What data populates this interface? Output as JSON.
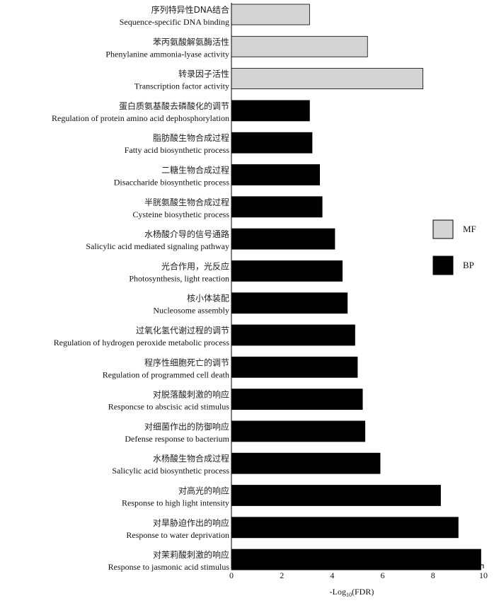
{
  "chart_data": {
    "type": "bar",
    "orientation": "horizontal",
    "categories": [
      {
        "zh": "序列特异性DNA结合",
        "en": "Sequence-specific DNA binding",
        "value": 3.1,
        "group": "MF"
      },
      {
        "zh": "苯丙氨酸解氨酶活性",
        "en": "Phenylanine ammonia-lyase activity",
        "value": 5.4,
        "group": "MF"
      },
      {
        "zh": "转录因子活性",
        "en": "Transcription factor activity",
        "value": 7.6,
        "group": "MF"
      },
      {
        "zh": "蛋白质氨基酸去磷酸化的调节",
        "en": "Regulation of protein amino acid dephosphorylation",
        "value": 3.1,
        "group": "BP"
      },
      {
        "zh": "脂肪酸生物合成过程",
        "en": "Fatty acid biosynthetic process",
        "value": 3.2,
        "group": "BP"
      },
      {
        "zh": "二糖生物合成过程",
        "en": "Disaccharide biosynthetic process",
        "value": 3.5,
        "group": "BP"
      },
      {
        "zh": "半胱氨酸生物合成过程",
        "en": "Cysteine biosythetic process",
        "value": 3.6,
        "group": "BP"
      },
      {
        "zh": "水杨酸介导的信号通路",
        "en": "Salicylic acid mediated signaling pathway",
        "value": 4.1,
        "group": "BP"
      },
      {
        "zh": "光合作用，光反应",
        "en": "Photosynthesis, light reaction",
        "value": 4.4,
        "group": "BP"
      },
      {
        "zh": "核小体装配",
        "en": "Nucleosome assembly",
        "value": 4.6,
        "group": "BP"
      },
      {
        "zh": "过氧化氢代谢过程的调节",
        "en": "Regulation of hydrogen peroxide metabolic process",
        "value": 4.9,
        "group": "BP"
      },
      {
        "zh": "程序性细胞死亡的调节",
        "en": "Regulation of programmed cell death",
        "value": 5.0,
        "group": "BP"
      },
      {
        "zh": "对脱落酸刺激的响应",
        "en": "Responcse to abscisic acid stimulus",
        "value": 5.2,
        "group": "BP"
      },
      {
        "zh": "对细菌作出的防御响应",
        "en": "Defense response to bacterium",
        "value": 5.3,
        "group": "BP"
      },
      {
        "zh": "水杨酸生物合成过程",
        "en": "Salicylic acid biosynthetic process",
        "value": 5.9,
        "group": "BP"
      },
      {
        "zh": "对高光的响应",
        "en": "Response to high light intensity",
        "value": 8.3,
        "group": "BP"
      },
      {
        "zh": "对旱胁迫作出的响应",
        "en": "Response to water deprivation",
        "value": 9.0,
        "group": "BP"
      },
      {
        "zh": "对茉莉酸刺激的响应",
        "en": "Response to jasmonic acid stimulus",
        "value": 9.9,
        "group": "BP"
      }
    ],
    "xlim": [
      0,
      10
    ],
    "xticks": [
      "0",
      "2",
      "4",
      "6",
      "8",
      "10"
    ],
    "xlabel_main": "-Log",
    "xlabel_sub": "10",
    "xlabel_tail": "(FDR)",
    "legend": [
      {
        "name": "MF",
        "color": "#d4d4d4"
      },
      {
        "name": "BP",
        "color": "#000000"
      }
    ],
    "legend_position": "right",
    "grid": false
  }
}
